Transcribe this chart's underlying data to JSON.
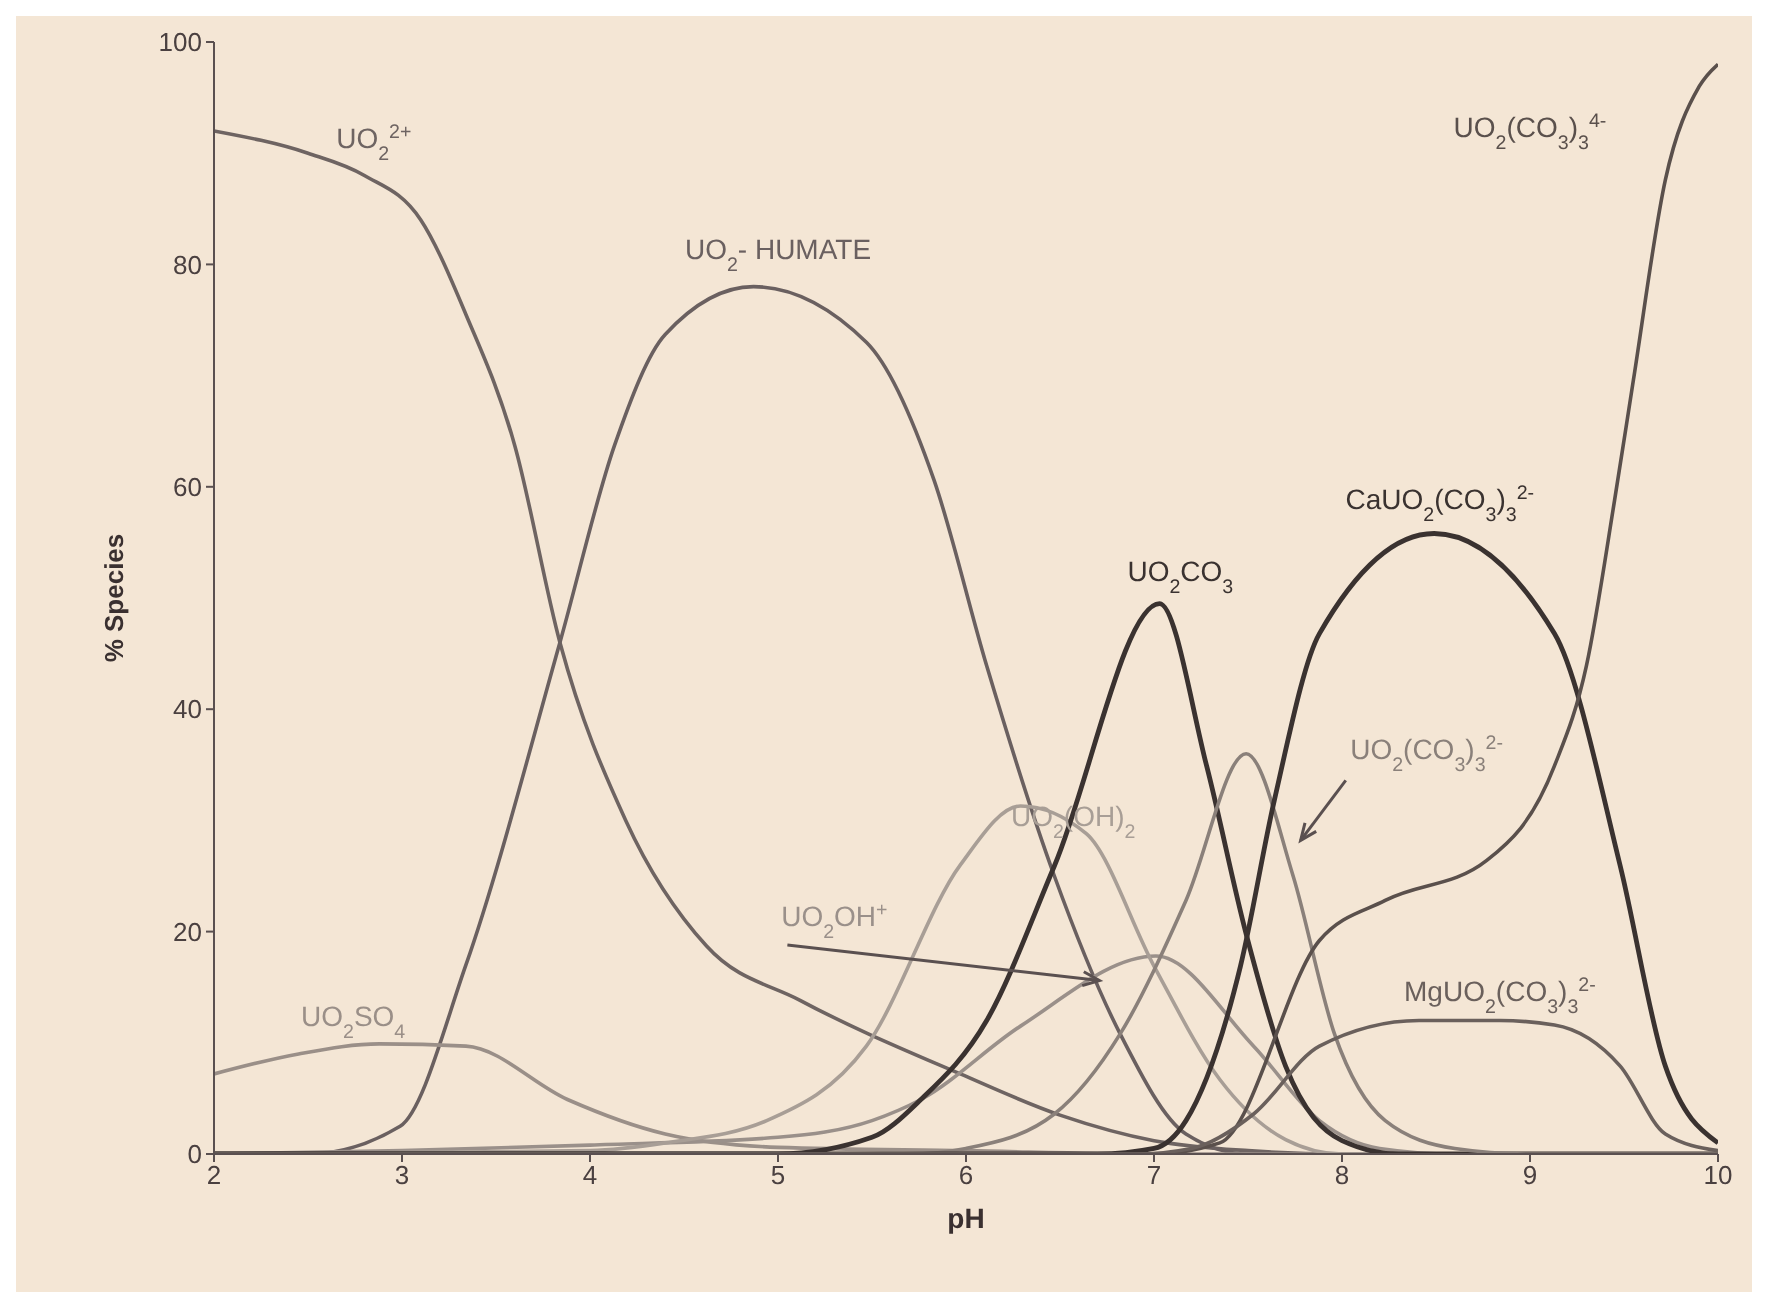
{
  "chart_data": {
    "type": "line",
    "xlabel": "pH",
    "ylabel": "% Species",
    "xlim": [
      2,
      10
    ],
    "xticks": [
      2,
      3,
      4,
      5,
      6,
      7,
      8,
      9,
      10
    ],
    "ylim": [
      0,
      100
    ],
    "yticks": [
      0,
      20,
      40,
      60,
      80,
      100
    ],
    "series": [
      {
        "name": "UO$_{2}$$^{2+}$",
        "color": "#6e6462",
        "x": [
          2,
          2.5,
          2.8,
          3.1,
          3.34,
          3.6,
          3.84,
          4.19,
          4.62,
          5.12,
          5.97,
          6.5,
          7,
          7.5,
          8,
          10
        ],
        "values": [
          92,
          90,
          88,
          84,
          75.5,
          63.7,
          46,
          30,
          18.7,
          13.8,
          7.2,
          3.5,
          1.2,
          0.3,
          0,
          0
        ]
      },
      {
        "name": "UO$_{2}$- HUMATE",
        "color": "#6a6060",
        "x": [
          2,
          2.5,
          2.99,
          3.34,
          3.84,
          4.13,
          4.4,
          4.87,
          5.47,
          5.83,
          6.11,
          6.47,
          6.82,
          7.17,
          7.5,
          10
        ],
        "values": [
          0,
          0,
          2.5,
          17,
          46,
          63.7,
          73.7,
          78,
          73,
          60.6,
          43.9,
          25,
          10.8,
          1.8,
          0,
          0
        ]
      },
      {
        "name": "UO$_{2}$SO$_{4}$",
        "color": "#9a8f88",
        "x": [
          2,
          2.45,
          2.88,
          3.34,
          3.88,
          4.4,
          5,
          6,
          7,
          10
        ],
        "values": [
          7.2,
          9,
          9.9,
          9.7,
          4.9,
          1.8,
          0.6,
          0.3,
          0,
          0
        ]
      },
      {
        "name": "UO$_{2}$OH$^{+}$",
        "color": "#9a908a",
        "x": [
          2,
          3,
          4,
          5,
          5.5,
          5.76,
          6.29,
          7.01,
          7.53,
          7.88,
          8.2,
          8.6,
          10
        ],
        "values": [
          0,
          0.3,
          0.8,
          1.5,
          3,
          4.9,
          11.5,
          17.8,
          9.7,
          3,
          0.5,
          0,
          0
        ]
      },
      {
        "name": "UO$_{2}$(OH)$_{2}$",
        "color": "#a89e96",
        "x": [
          2,
          4,
          4.4,
          4.94,
          5.47,
          5.97,
          6.29,
          6.64,
          7,
          7.35,
          7.7,
          8,
          10
        ],
        "values": [
          0,
          0.3,
          1,
          3,
          9.7,
          26,
          31.3,
          28.8,
          16.9,
          6.7,
          1.3,
          0,
          0
        ]
      },
      {
        "name": "UO$_{2}$CO$_{3}$",
        "color": "#3a3230",
        "x": [
          2,
          5,
          5.5,
          5.76,
          6.11,
          6.47,
          7.03,
          7.28,
          7.49,
          7.7,
          8,
          8.3,
          10
        ],
        "values": [
          0,
          0,
          1.5,
          4.9,
          12,
          25.9,
          49.5,
          34.9,
          19.8,
          7.9,
          1.2,
          0,
          0
        ]
      },
      {
        "name": "UO$_{2}$(CO$_{3}$)$_{3}$$^{2-}$",
        "color": "#8a807a",
        "x": [
          2,
          5.7,
          6,
          6.47,
          6.82,
          7.17,
          7.49,
          7.74,
          7.96,
          8.23,
          8.6,
          9,
          10
        ],
        "values": [
          0,
          0,
          0.5,
          3.6,
          10.8,
          22.8,
          36,
          25,
          10.8,
          3,
          0.5,
          0,
          0
        ]
      },
      {
        "name": "CaUO$_{2}$(CO$_{3}$)$_{3}$$^{2-}$",
        "color": "#3a3230",
        "x": [
          2,
          6.7,
          7,
          7.17,
          7.46,
          7.64,
          7.88,
          8.49,
          9.13,
          9.48,
          9.72,
          10
        ],
        "values": [
          0,
          0,
          0.5,
          3,
          16.9,
          31.8,
          46.8,
          55.8,
          46.8,
          25.9,
          7.9,
          1
        ]
      },
      {
        "name": "UO$_{2}$(CO$_{3}$)$_{3}$$^{4-}$",
        "color": "#5a504c",
        "x": [
          2,
          7,
          7.35,
          7.88,
          8.23,
          8.77,
          9.13,
          9.3,
          9.45,
          9.55,
          9.72,
          9.9,
          10
        ],
        "values": [
          0,
          0,
          1,
          19.2,
          22.8,
          26.4,
          34.9,
          43.9,
          58.8,
          69.6,
          87.6,
          96,
          98
        ]
      },
      {
        "name": "MgUO$_{2}$(CO$_{3}$)$_{3}$$^{2-}$",
        "color": "#6a605c",
        "x": [
          2,
          6.9,
          7.2,
          7.53,
          7.88,
          8.41,
          8.84,
          9.13,
          9.48,
          9.72,
          10
        ],
        "values": [
          0,
          0,
          0.5,
          3.6,
          9.7,
          12,
          12,
          11.6,
          7.9,
          1.8,
          0.3
        ]
      }
    ]
  }
}
